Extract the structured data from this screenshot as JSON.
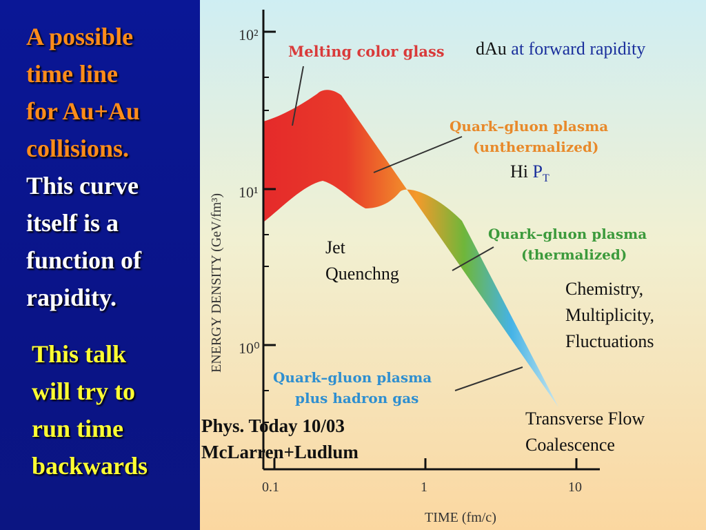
{
  "left": {
    "title_lines_orange": [
      "A possible",
      "time line",
      "for Au+Au",
      "collisions."
    ],
    "title_lines_white": [
      "This curve",
      "itself is a",
      "function of",
      "rapidity."
    ],
    "talk_lines": [
      "This talk",
      "will try to",
      "run time",
      "backwards"
    ]
  },
  "figure": {
    "colors": {
      "red": "#e52a2a",
      "orange": "#f39a2b",
      "green": "#6fb63a",
      "blue": "#45b3e6",
      "label_red": "#d93a3a",
      "label_orange": "#e8892a",
      "label_green": "#3c9a3c",
      "label_blue": "#2f8fd0"
    },
    "y_axis": {
      "label": "ENERGY DENSITY (GeV/fm³)",
      "ticks": [
        "10²",
        "10¹",
        "10⁰"
      ]
    },
    "x_axis": {
      "label": "TIME (fm/c)",
      "ticks": [
        "0.1",
        "1",
        "10"
      ]
    },
    "phase_labels": {
      "melting": "Melting color glass",
      "unthermalized_1": "Quark–gluon plasma",
      "unthermalized_2": "(unthermalized)",
      "thermalized_1": "Quark–gluon plasma",
      "thermalized_2": "(thermalized)",
      "hadron_1": "Quark–gluon plasma",
      "hadron_2": "plus hadron gas"
    }
  },
  "annotations": {
    "dau_black": "dAu",
    "dau_blue": "at forward rapidity",
    "hipt_black": "Hi",
    "hipt_blue": "P",
    "hipt_sub": "T",
    "jet": "Jet",
    "quench": "Quenchng",
    "chemistry": "Chemistry,",
    "multiplicity": "Multiplicity,",
    "fluctuations": "Fluctuations",
    "transverse": "Transverse Flow",
    "coalescence": "Coalescence",
    "ref1": "Phys. Today 10/03",
    "ref2": "McLarren+Ludlum"
  }
}
